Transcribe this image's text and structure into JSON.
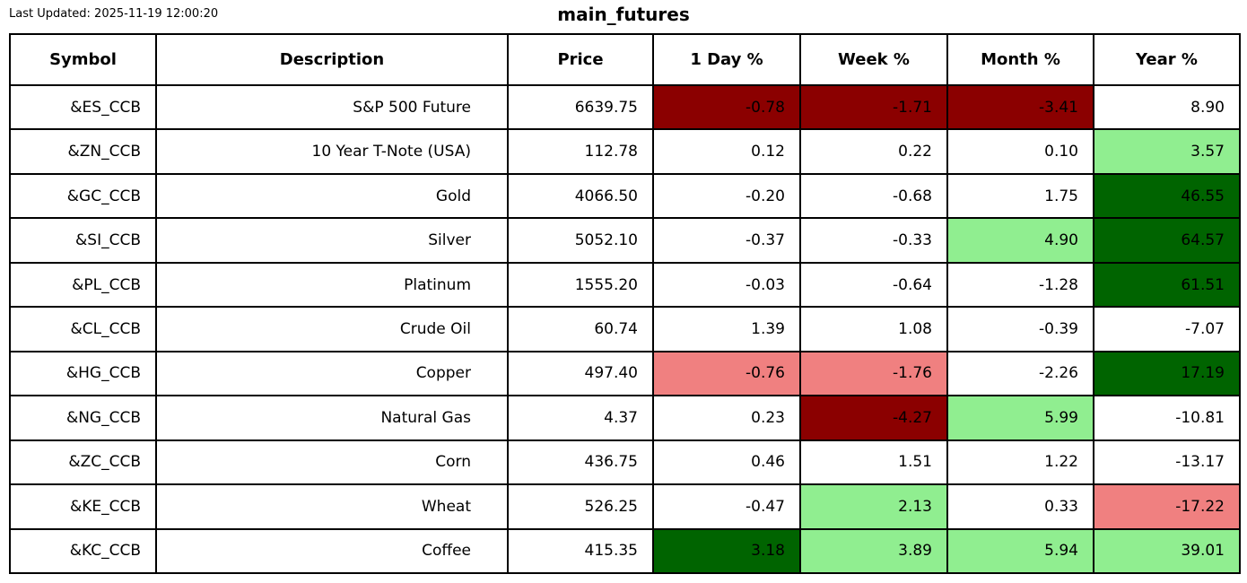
{
  "page": {
    "last_updated": "Last Updated: 2025-11-19 12:00:20",
    "title": "main_futures"
  },
  "colors": {
    "strong_negative": "#8b0000",
    "negative": "#f08080",
    "positive": "#90ee90",
    "strong_positive": "#006400",
    "neutral": "#ffffff",
    "border": "#000000",
    "text": "#000000"
  },
  "chart_data": {
    "type": "table",
    "title": "main_futures",
    "columns": [
      "Symbol",
      "Description",
      "Price",
      "1 Day %",
      "Week %",
      "Month %",
      "Year %"
    ],
    "rows": [
      {
        "symbol": "&ES_CCB",
        "description": "S&P 500 Future",
        "price": "6639.75",
        "changes": [
          {
            "value": "-0.78",
            "tone": "strong_negative"
          },
          {
            "value": "-1.71",
            "tone": "strong_negative"
          },
          {
            "value": "-3.41",
            "tone": "strong_negative"
          },
          {
            "value": "8.90",
            "tone": "neutral"
          }
        ]
      },
      {
        "symbol": "&ZN_CCB",
        "description": "10 Year T-Note (USA)",
        "price": "112.78",
        "changes": [
          {
            "value": "0.12",
            "tone": "neutral"
          },
          {
            "value": "0.22",
            "tone": "neutral"
          },
          {
            "value": "0.10",
            "tone": "neutral"
          },
          {
            "value": "3.57",
            "tone": "positive"
          }
        ]
      },
      {
        "symbol": "&GC_CCB",
        "description": "Gold",
        "price": "4066.50",
        "changes": [
          {
            "value": "-0.20",
            "tone": "neutral"
          },
          {
            "value": "-0.68",
            "tone": "neutral"
          },
          {
            "value": "1.75",
            "tone": "neutral"
          },
          {
            "value": "46.55",
            "tone": "strong_positive"
          }
        ]
      },
      {
        "symbol": "&SI_CCB",
        "description": "Silver",
        "price": "5052.10",
        "changes": [
          {
            "value": "-0.37",
            "tone": "neutral"
          },
          {
            "value": "-0.33",
            "tone": "neutral"
          },
          {
            "value": "4.90",
            "tone": "positive"
          },
          {
            "value": "64.57",
            "tone": "strong_positive"
          }
        ]
      },
      {
        "symbol": "&PL_CCB",
        "description": "Platinum",
        "price": "1555.20",
        "changes": [
          {
            "value": "-0.03",
            "tone": "neutral"
          },
          {
            "value": "-0.64",
            "tone": "neutral"
          },
          {
            "value": "-1.28",
            "tone": "neutral"
          },
          {
            "value": "61.51",
            "tone": "strong_positive"
          }
        ]
      },
      {
        "symbol": "&CL_CCB",
        "description": "Crude Oil",
        "price": "60.74",
        "changes": [
          {
            "value": "1.39",
            "tone": "neutral"
          },
          {
            "value": "1.08",
            "tone": "neutral"
          },
          {
            "value": "-0.39",
            "tone": "neutral"
          },
          {
            "value": "-7.07",
            "tone": "neutral"
          }
        ]
      },
      {
        "symbol": "&HG_CCB",
        "description": "Copper",
        "price": "497.40",
        "changes": [
          {
            "value": "-0.76",
            "tone": "negative"
          },
          {
            "value": "-1.76",
            "tone": "negative"
          },
          {
            "value": "-2.26",
            "tone": "neutral"
          },
          {
            "value": "17.19",
            "tone": "strong_positive"
          }
        ]
      },
      {
        "symbol": "&NG_CCB",
        "description": "Natural Gas",
        "price": "4.37",
        "changes": [
          {
            "value": "0.23",
            "tone": "neutral"
          },
          {
            "value": "-4.27",
            "tone": "strong_negative"
          },
          {
            "value": "5.99",
            "tone": "positive"
          },
          {
            "value": "-10.81",
            "tone": "neutral"
          }
        ]
      },
      {
        "symbol": "&ZC_CCB",
        "description": "Corn",
        "price": "436.75",
        "changes": [
          {
            "value": "0.46",
            "tone": "neutral"
          },
          {
            "value": "1.51",
            "tone": "neutral"
          },
          {
            "value": "1.22",
            "tone": "neutral"
          },
          {
            "value": "-13.17",
            "tone": "neutral"
          }
        ]
      },
      {
        "symbol": "&KE_CCB",
        "description": "Wheat",
        "price": "526.25",
        "changes": [
          {
            "value": "-0.47",
            "tone": "neutral"
          },
          {
            "value": "2.13",
            "tone": "positive"
          },
          {
            "value": "0.33",
            "tone": "neutral"
          },
          {
            "value": "-17.22",
            "tone": "negative"
          }
        ]
      },
      {
        "symbol": "&KC_CCB",
        "description": "Coffee",
        "price": "415.35",
        "changes": [
          {
            "value": "3.18",
            "tone": "strong_positive"
          },
          {
            "value": "3.89",
            "tone": "positive"
          },
          {
            "value": "5.94",
            "tone": "positive"
          },
          {
            "value": "39.01",
            "tone": "positive"
          }
        ]
      }
    ]
  }
}
